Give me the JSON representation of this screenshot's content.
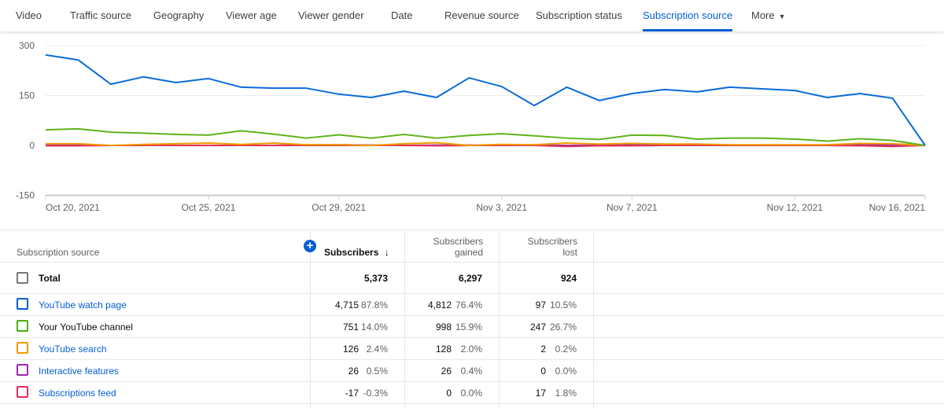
{
  "tabs": [
    {
      "label": "Video"
    },
    {
      "label": "Traffic source"
    },
    {
      "label": "Geography"
    },
    {
      "label": "Viewer age"
    },
    {
      "label": "Viewer gender"
    },
    {
      "label": "Date"
    },
    {
      "label": "Revenue source"
    },
    {
      "label": "Subscription status"
    },
    {
      "label": "Subscription source",
      "active": true
    },
    {
      "label": "More"
    }
  ],
  "chart_data": {
    "type": "line",
    "x": [
      "Oct 20",
      "Oct 21",
      "Oct 22",
      "Oct 23",
      "Oct 24",
      "Oct 25",
      "Oct 26",
      "Oct 27",
      "Oct 28",
      "Oct 29",
      "Oct 30",
      "Oct 31",
      "Nov 1",
      "Nov 2",
      "Nov 3",
      "Nov 4",
      "Nov 5",
      "Nov 6",
      "Nov 7",
      "Nov 8",
      "Nov 9",
      "Nov 10",
      "Nov 11",
      "Nov 12",
      "Nov 13",
      "Nov 14",
      "Nov 15",
      "Nov 16"
    ],
    "x_tick_labels": [
      "Oct 20, 2021",
      "Oct 25, 2021",
      "Oct 29, 2021",
      "Nov 3, 2021",
      "Nov 7, 2021",
      "Nov 12, 2021",
      "Nov 16, 2021"
    ],
    "y_tick_labels": [
      "300",
      "150",
      "0",
      "-150"
    ],
    "ylim": [
      -150,
      300
    ],
    "grid": true,
    "series": [
      {
        "name": "YouTube watch page",
        "color": "#0b6bd8",
        "values": [
          272,
          257,
          184,
          206,
          189,
          201,
          175,
          172,
          172,
          154,
          144,
          163,
          144,
          203,
          177,
          120,
          175,
          135,
          156,
          168,
          161,
          175,
          170,
          165,
          144,
          156,
          142,
          0
        ]
      },
      {
        "name": "Your YouTube channel",
        "color": "#5fb31a",
        "values": [
          47,
          50,
          40,
          37,
          33,
          31,
          44,
          34,
          22,
          32,
          22,
          33,
          22,
          30,
          35,
          29,
          22,
          18,
          31,
          30,
          19,
          22,
          22,
          19,
          13,
          20,
          15,
          0
        ]
      },
      {
        "name": "YouTube search",
        "color": "#f29900",
        "values": [
          5,
          5,
          0,
          3,
          5,
          7,
          3,
          7,
          2,
          2,
          0,
          5,
          8,
          0,
          3,
          2,
          7,
          4,
          6,
          4,
          4,
          2,
          2,
          2,
          2,
          6,
          5,
          0
        ]
      },
      {
        "name": "Subscriptions feed",
        "color": "#e0315a",
        "values": [
          -1,
          -1,
          0,
          0,
          0,
          0,
          0,
          0,
          0,
          0,
          0,
          0,
          -1,
          0,
          0,
          0,
          -3,
          -1,
          -1,
          0,
          0,
          0,
          0,
          0,
          0,
          -1,
          -3,
          0
        ]
      },
      {
        "name": "Interactive features",
        "color": "#9c27b0",
        "values": [
          1,
          1,
          0,
          0,
          0,
          0,
          0,
          0,
          2,
          2,
          1,
          0,
          1,
          1,
          1,
          1,
          0,
          1,
          3,
          2,
          1,
          1,
          1,
          1,
          1,
          2,
          1,
          0
        ]
      }
    ]
  },
  "table": {
    "headers": {
      "source": "Subscription source",
      "subscribers": "Subscribers",
      "sort_arrow": "↓",
      "gained_1": "Subscribers",
      "gained_2": "gained",
      "lost_1": "Subscribers",
      "lost_2": "lost"
    },
    "total": {
      "label": "Total",
      "subscribers": "5,373",
      "gained": "6,297",
      "lost": "924"
    },
    "rows": [
      {
        "label": "YouTube watch page",
        "color": "#065fd4",
        "link": true,
        "subs": "4,715",
        "subs_pct": "87.8%",
        "gained": "4,812",
        "gained_pct": "76.4%",
        "lost": "97",
        "lost_pct": "10.5%"
      },
      {
        "label": "Your YouTube channel",
        "color": "#4caf0c",
        "link": false,
        "subs": "751",
        "subs_pct": "14.0%",
        "gained": "998",
        "gained_pct": "15.9%",
        "lost": "247",
        "lost_pct": "26.7%"
      },
      {
        "label": "YouTube search",
        "color": "#f29900",
        "link": true,
        "subs": "126",
        "subs_pct": "2.4%",
        "gained": "128",
        "gained_pct": "2.0%",
        "lost": "2",
        "lost_pct": "0.2%"
      },
      {
        "label": "Interactive features",
        "color": "#9c27b0",
        "link": true,
        "subs": "26",
        "subs_pct": "0.5%",
        "gained": "26",
        "gained_pct": "0.4%",
        "lost": "0",
        "lost_pct": "0.0%"
      },
      {
        "label": "Subscriptions feed",
        "color": "#e0315a",
        "link": true,
        "subs": "-17",
        "subs_pct": "-0.3%",
        "gained": "0",
        "gained_pct": "0.0%",
        "lost": "17",
        "lost_pct": "1.8%"
      }
    ]
  }
}
